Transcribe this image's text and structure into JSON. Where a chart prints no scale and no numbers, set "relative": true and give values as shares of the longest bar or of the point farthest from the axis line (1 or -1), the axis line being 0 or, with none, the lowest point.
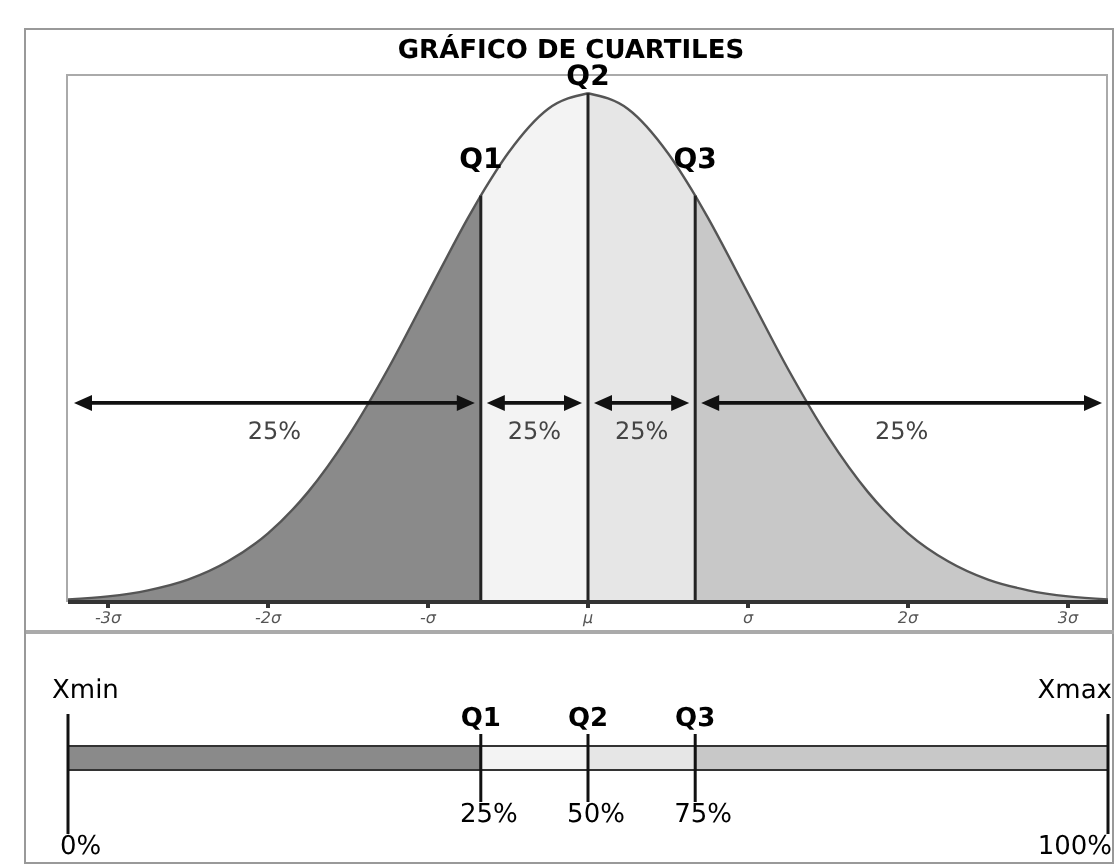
{
  "chart_data": [
    {
      "type": "area",
      "title": "GRÁFICO DE CUARTILES",
      "relative": true,
      "xlim": [
        -3.25,
        3.25
      ],
      "xticks": [
        {
          "value": -3,
          "label": "-3σ"
        },
        {
          "value": -2,
          "label": "-2σ"
        },
        {
          "value": -1,
          "label": "-σ"
        },
        {
          "value": 0,
          "label": "μ"
        },
        {
          "value": 1,
          "label": "σ"
        },
        {
          "value": 2,
          "label": "2σ"
        },
        {
          "value": 3,
          "label": "3σ"
        }
      ],
      "series": [
        {
          "color": "#8a8a8a",
          "x": [
            -3.25,
            -3,
            -2.75,
            -2.5,
            -2.25,
            -2,
            -1.75,
            -1.5,
            -1.25,
            -1,
            -0.75,
            -0.67
          ],
          "values": [
            0.005,
            0.011,
            0.023,
            0.044,
            0.08,
            0.135,
            0.216,
            0.325,
            0.458,
            0.607,
            0.755,
            0.799
          ]
        },
        {
          "color": "#f3f3f3",
          "x": [
            -0.67,
            -0.5,
            -0.25,
            0
          ],
          "values": [
            0.799,
            0.882,
            0.969,
            1
          ]
        },
        {
          "color": "#e6e6e6",
          "x": [
            0,
            0.25,
            0.5,
            0.67
          ],
          "values": [
            1,
            0.969,
            0.882,
            0.799
          ]
        },
        {
          "color": "#c8c8c8",
          "x": [
            0.67,
            0.75,
            1,
            1.25,
            1.5,
            1.75,
            2,
            2.25,
            2.5,
            2.75,
            3,
            3.25
          ],
          "values": [
            0.799,
            0.755,
            0.607,
            0.458,
            0.325,
            0.216,
            0.135,
            0.08,
            0.044,
            0.023,
            0.011,
            0.005
          ]
        }
      ],
      "ref_lines": [
        {
          "axis": "x",
          "value": -0.67,
          "label": "Q1"
        },
        {
          "axis": "x",
          "value": 0,
          "label": "Q2"
        },
        {
          "axis": "x",
          "value": 0.67,
          "label": "Q3"
        }
      ],
      "annotations": [
        "25%",
        "25%",
        "25%",
        "25%"
      ]
    },
    {
      "type": "other",
      "annotations": [
        "Xmin",
        "Q1",
        "Q2",
        "Q3",
        "Xmax",
        "0%",
        "25%",
        "50%",
        "75%",
        "100%"
      ]
    }
  ]
}
